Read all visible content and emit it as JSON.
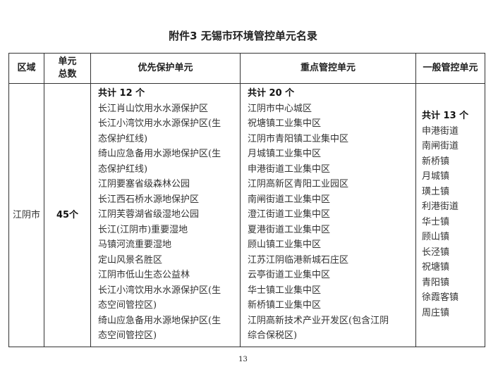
{
  "title": "附件3  无锡市环境管控单元名录",
  "headers": {
    "region": "区域",
    "total": "单元总数",
    "priority": "优先保护单元",
    "key": "重点管控单元",
    "general": "一般管控单元"
  },
  "row": {
    "region": "江阴市",
    "total": "45个",
    "priority": {
      "count": "共计 12 个",
      "items": [
        "长江肖山饮用水水源保护区",
        "长江小湾饮用水水源保护区(生",
        "态保护红线)",
        "绮山应急备用水源地保护区(生",
        "态保护红线)",
        "江阴要塞省级森林公园",
        "长江西石桥水源地保护区",
        "江阴芙蓉湖省级湿地公园",
        "长江(江阴市)重要湿地",
        "马镇河流重要湿地",
        "定山风景名胜区",
        "江阴市低山生态公益林",
        "长江小湾饮用水水源保护区(生",
        "态空间管控区)",
        "绮山应急备用水源地保护区(生",
        "态空间管控区)"
      ]
    },
    "key": {
      "count": "共计 20 个",
      "items": [
        "江阴市中心城区",
        "祝塘镇工业集中区",
        "江阴市青阳镇工业集中区",
        "月城镇工业集中区",
        "申港街道工业集中区",
        "江阴高新区青阳工业园区",
        "南闸街道工业集中区",
        "澄江街道工业集中区",
        "夏港街道工业集中区",
        "顾山镇工业集中区",
        "江苏江阴临港新城石庄区",
        "云亭街道工业集中区",
        "华士镇工业集中区",
        "新桥镇工业集中区",
        "江阴高新技术产业开发区(包含江阴",
        "综合保税区)"
      ]
    },
    "general": {
      "count": "共计 13 个",
      "items": [
        "申港街道",
        "南闸街道",
        "新桥镇",
        "月城镇",
        "璜土镇",
        "利港街道",
        "华士镇",
        "顾山镇",
        "长泾镇",
        "祝塘镇",
        "青阳镇",
        "徐霞客镇",
        "周庄镇"
      ]
    }
  },
  "page_number": "13"
}
